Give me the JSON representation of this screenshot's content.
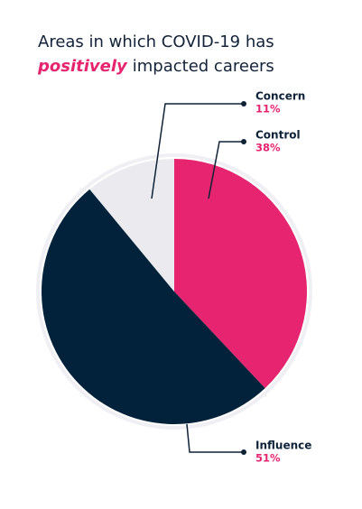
{
  "chart_data": {
    "type": "pie",
    "title": {
      "line1": "Areas in which COVID-19 has",
      "emphasis": "positively",
      "rest": "impacted careers"
    },
    "categories": [
      "Control",
      "Influence",
      "Concern"
    ],
    "values": [
      38,
      51,
      11
    ],
    "value_labels": [
      "38%",
      "51%",
      "11%"
    ],
    "colors": [
      "#e6246f",
      "#02223b",
      "#ebebef"
    ]
  }
}
